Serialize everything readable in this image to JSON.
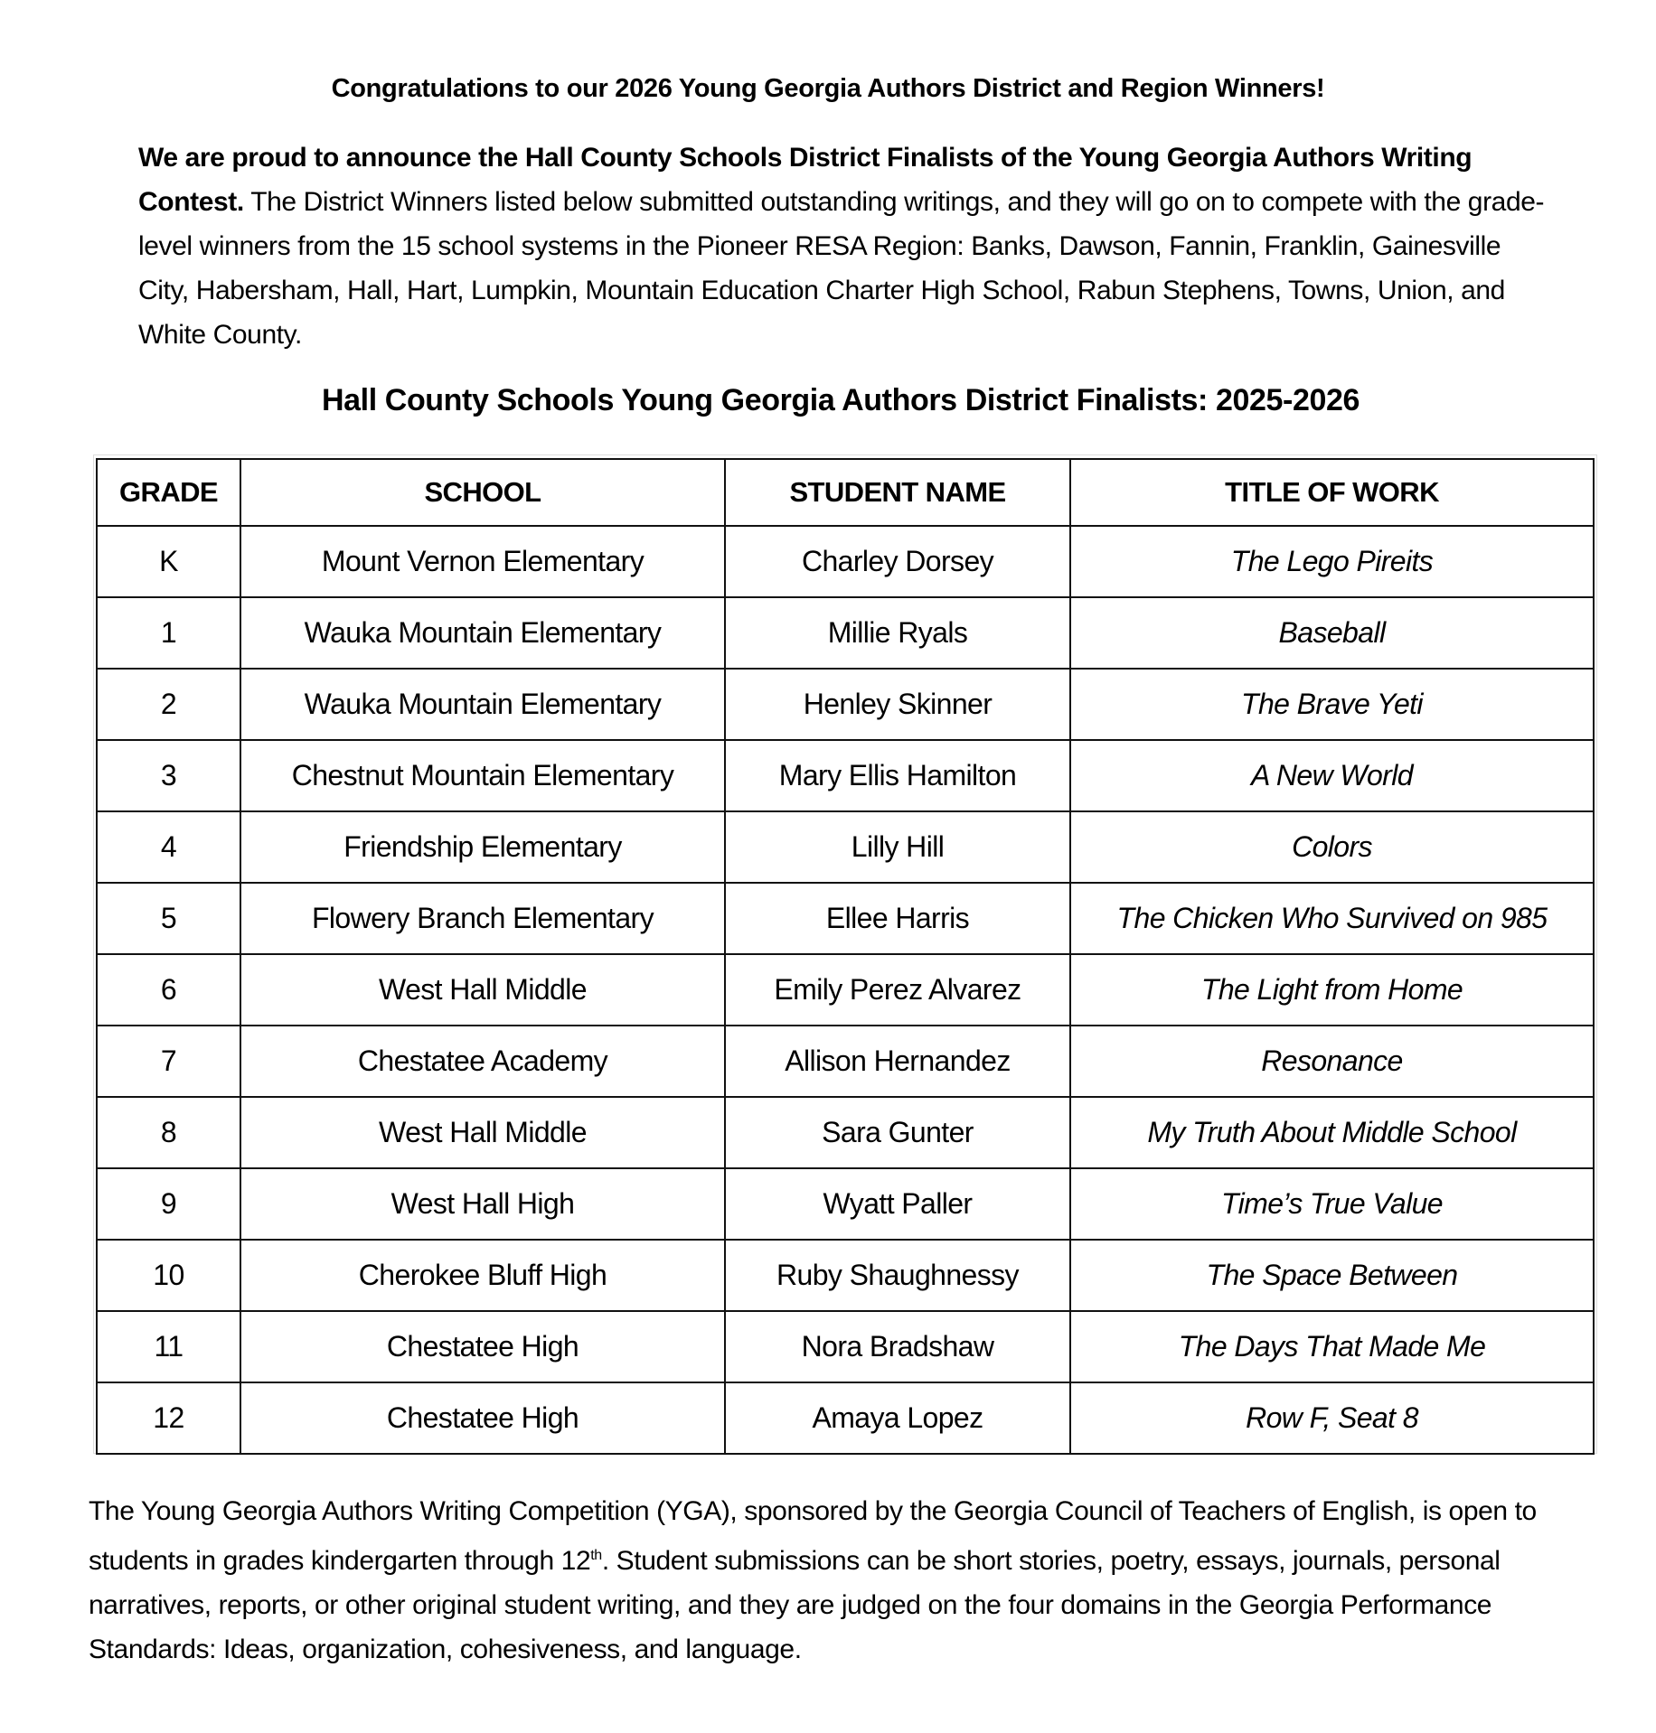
{
  "heading": "Congratulations to our 2026 Young Georgia Authors District and Region Winners!",
  "intro": {
    "bold": "We are proud to announce the Hall County Schools District Finalists of the Young Georgia Authors Writing Contest.",
    "text": " The District Winners listed below submitted outstanding writings, and they will go on to compete with the grade-level winners from the 15 school systems in the Pioneer RESA Region: Banks, Dawson, Fannin, Franklin, Gainesville City, Habersham, Hall, Hart, Lumpkin, Mountain Education Charter High School, Rabun Stephens, Towns, Union, and White County."
  },
  "table_title": "Hall County Schools Young Georgia Authors District Finalists: 2025-2026",
  "table": {
    "headers": [
      "GRADE",
      "SCHOOL",
      "STUDENT NAME",
      "TITLE OF WORK"
    ],
    "rows": [
      [
        "K",
        "Mount Vernon Elementary",
        "Charley Dorsey",
        "The Lego Pireits"
      ],
      [
        "1",
        "Wauka Mountain Elementary",
        "Millie Ryals",
        "Baseball"
      ],
      [
        "2",
        "Wauka Mountain Elementary",
        "Henley Skinner",
        "The Brave Yeti"
      ],
      [
        "3",
        "Chestnut Mountain Elementary",
        "Mary Ellis Hamilton",
        "A New World"
      ],
      [
        "4",
        "Friendship Elementary",
        "Lilly Hill",
        "Colors"
      ],
      [
        "5",
        "Flowery Branch Elementary",
        "Ellee Harris",
        "The Chicken Who Survived on 985"
      ],
      [
        "6",
        "West Hall Middle",
        "Emily Perez Alvarez",
        "The Light from Home"
      ],
      [
        "7",
        "Chestatee Academy",
        "Allison Hernandez",
        "Resonance"
      ],
      [
        "8",
        "West Hall Middle",
        "Sara Gunter",
        "My Truth About Middle School"
      ],
      [
        "9",
        "West Hall High",
        "Wyatt Paller",
        "Time’s True Value"
      ],
      [
        "10",
        "Cherokee Bluff High",
        "Ruby Shaughnessy",
        "The Space Between"
      ],
      [
        "11",
        "Chestatee High",
        "Nora Bradshaw",
        "The Days That Made Me"
      ],
      [
        "12",
        "Chestatee High",
        "Amaya Lopez",
        "Row F, Seat 8"
      ]
    ]
  },
  "footer": {
    "before_sup": "The Young Georgia Authors Writing Competition (YGA), sponsored by the Georgia Council of Teachers of English, is open to students in grades kindergarten through 12",
    "sup": "th",
    "after_sup": ". Student submissions can be short stories, poetry, essays, journals, personal narratives, reports, or other original student writing, and they are judged on the four domains in the Georgia Performance Standards: Ideas, organization, cohesiveness, and language."
  }
}
